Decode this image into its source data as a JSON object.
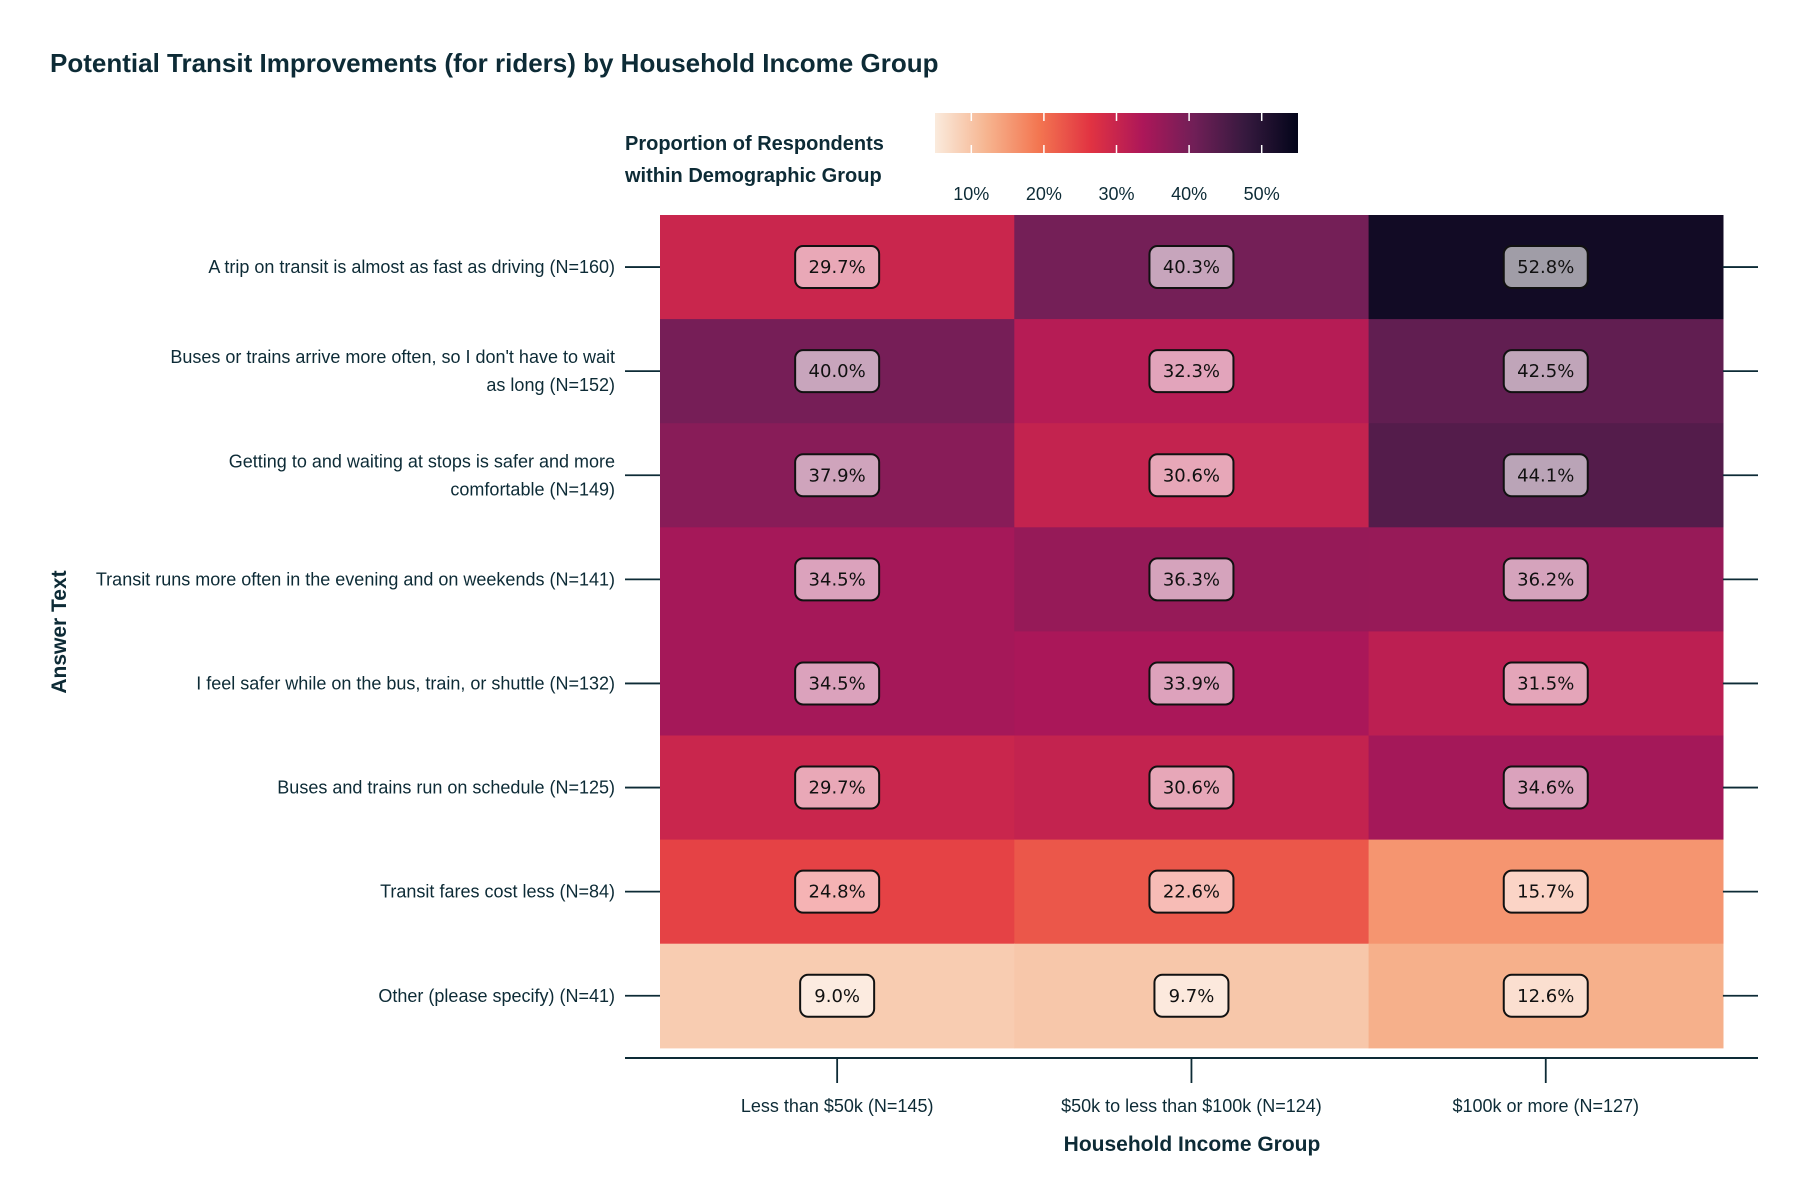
{
  "chart_data": {
    "type": "heatmap",
    "title": "Potential Transit Improvements (for riders) by Household Income Group",
    "xlabel": "Household Income Group",
    "ylabel": "Answer Text",
    "legend": {
      "title_lines": [
        "Proportion of Respondents",
        "within Demographic Group"
      ],
      "range": [
        5,
        55
      ],
      "ticks": [
        10,
        20,
        30,
        40,
        50
      ],
      "tick_labels": [
        "10%",
        "20%",
        "30%",
        "40%",
        "50%"
      ],
      "placement": "top"
    },
    "columns": [
      "Less than $50k (N=145)",
      "$50k to less than $100k (N=124)",
      "$100k or more (N=127)"
    ],
    "rows": [
      [
        "A trip on transit is almost as fast as driving (N=160)"
      ],
      [
        "Buses or trains arrive more often, so I don't have to wait",
        "as long (N=152)"
      ],
      [
        "Getting to and waiting at stops is safer and more",
        "comfortable (N=149)"
      ],
      [
        "Transit runs more often in the evening and on weekends (N=141)"
      ],
      [
        "I feel safer while on the bus, train, or shuttle (N=132)"
      ],
      [
        "Buses and trains run on schedule (N=125)"
      ],
      [
        "Transit fares cost less (N=84)"
      ],
      [
        "Other (please specify) (N=41)"
      ]
    ],
    "values": [
      [
        29.7,
        40.3,
        52.8
      ],
      [
        40.0,
        32.3,
        42.5
      ],
      [
        37.9,
        30.6,
        44.1
      ],
      [
        34.5,
        36.3,
        36.2
      ],
      [
        34.5,
        33.9,
        31.5
      ],
      [
        29.7,
        30.6,
        34.6
      ],
      [
        24.8,
        22.6,
        15.7
      ],
      [
        9.0,
        9.7,
        12.6
      ]
    ],
    "value_labels": [
      [
        "29.7%",
        "40.3%",
        "52.8%"
      ],
      [
        "40.0%",
        "32.3%",
        "42.5%"
      ],
      [
        "37.9%",
        "30.6%",
        "44.1%"
      ],
      [
        "34.5%",
        "36.3%",
        "36.2%"
      ],
      [
        "34.5%",
        "33.9%",
        "31.5%"
      ],
      [
        "29.7%",
        "30.6%",
        "34.6%"
      ],
      [
        "24.8%",
        "22.6%",
        "15.7%"
      ],
      [
        "9.0%",
        "9.7%",
        "12.6%"
      ]
    ],
    "colormap": {
      "name": "rocket",
      "stops": [
        "#faebdd",
        "#f6b48f",
        "#f37651",
        "#e13342",
        "#ad1759",
        "#701f57",
        "#35193e",
        "#03051a"
      ]
    }
  }
}
